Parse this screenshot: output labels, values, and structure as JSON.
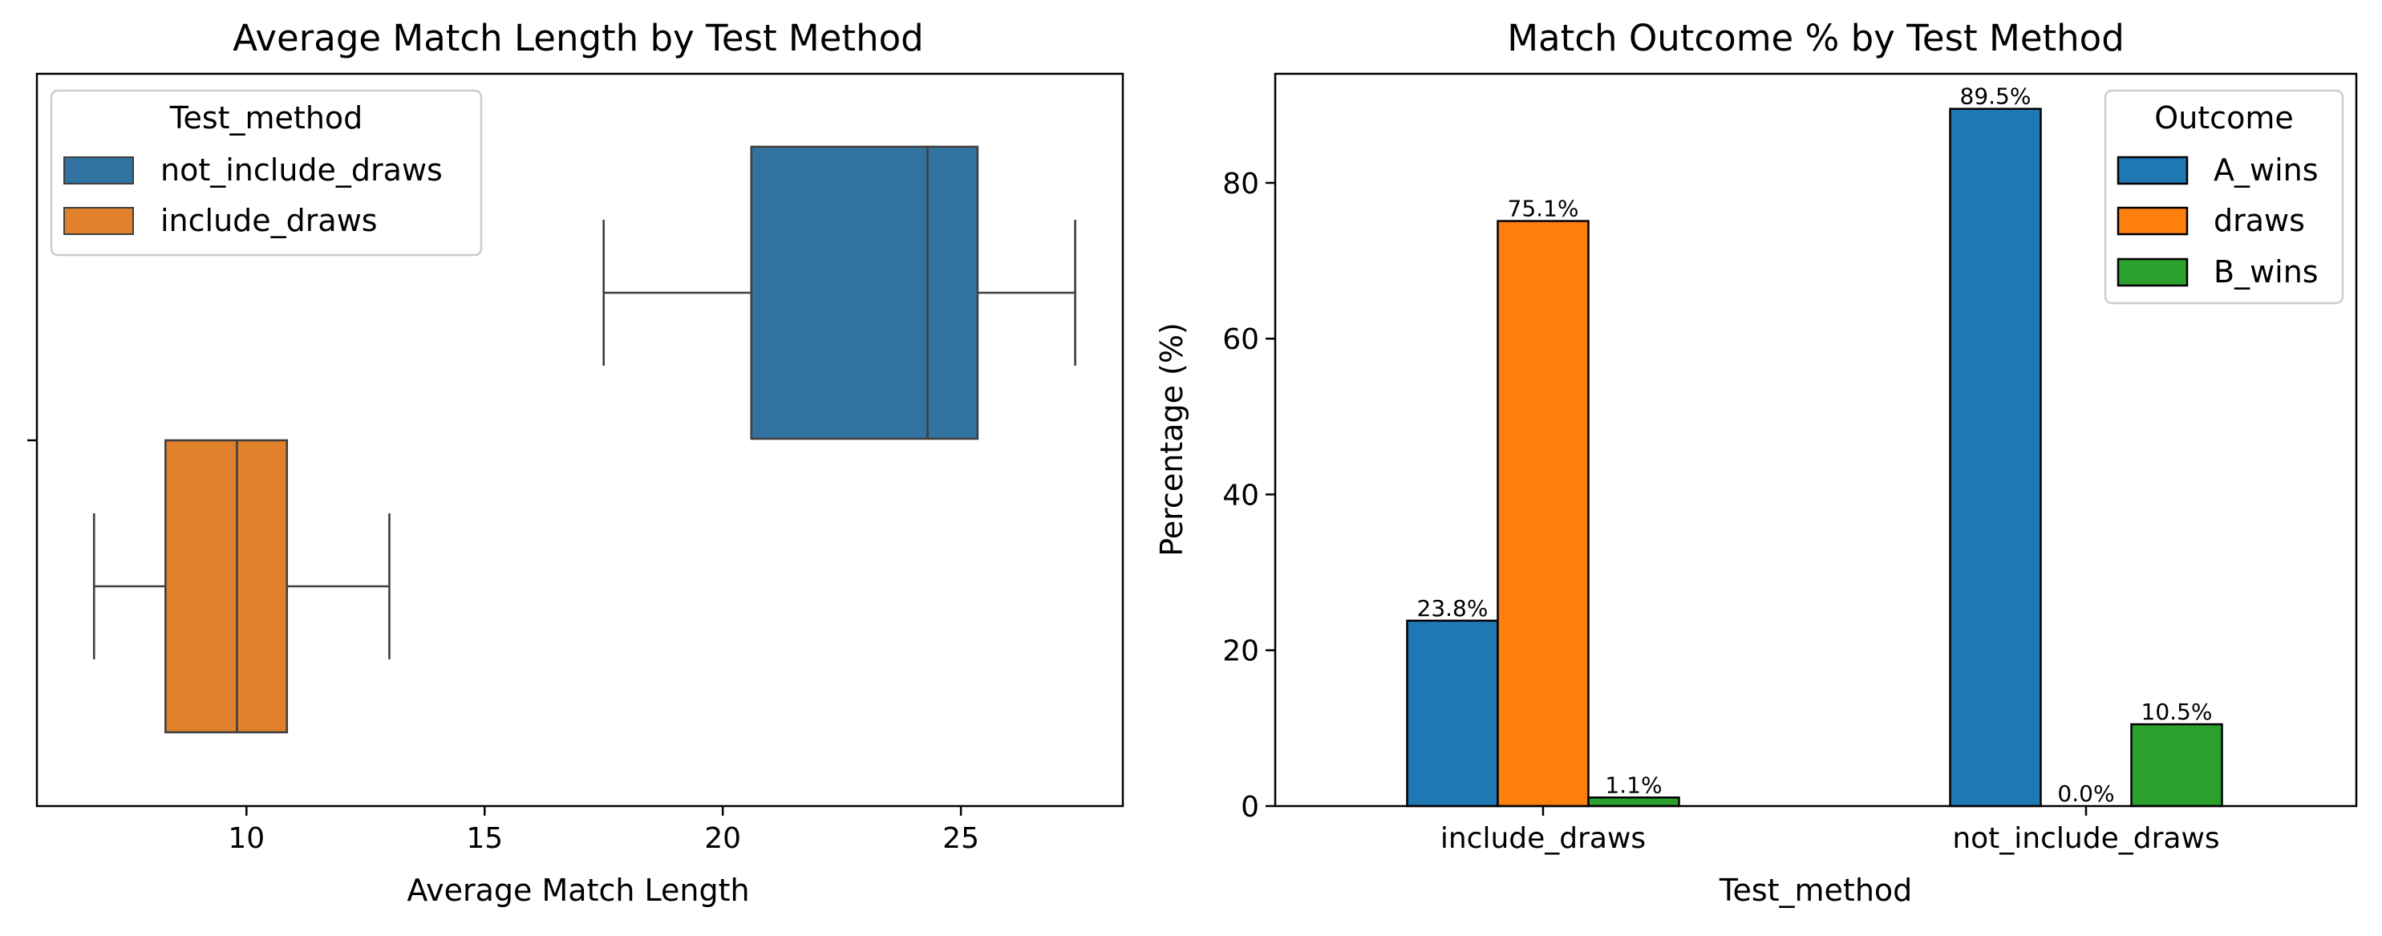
{
  "chart_data": [
    {
      "type": "box",
      "title": "Average Match Length by Test Method",
      "xlabel": "Average Match Length",
      "ylabel": "",
      "xlim": [
        5.6,
        28.4
      ],
      "xticks": [
        10,
        15,
        20,
        25
      ],
      "grid": false,
      "legend": {
        "title": "Test_method",
        "placement": "top-left",
        "entries": [
          {
            "label": "not_include_draws",
            "color": "#3274a1"
          },
          {
            "label": "include_draws",
            "color": "#e1812c"
          }
        ]
      },
      "series": [
        {
          "name": "not_include_draws",
          "color": "#3274a1",
          "whisker_low": 17.5,
          "q1": 20.6,
          "median": 24.3,
          "q3": 25.35,
          "whisker_high": 27.4
        },
        {
          "name": "include_draws",
          "color": "#e1812c",
          "whisker_low": 6.8,
          "q1": 8.3,
          "median": 9.8,
          "q3": 10.85,
          "whisker_high": 13.0
        }
      ]
    },
    {
      "type": "bar",
      "title": "Match Outcome % by Test Method",
      "xlabel": "Test_method",
      "ylabel": "Percentage (%)",
      "ylim": [
        0,
        94
      ],
      "yticks": [
        0,
        20,
        40,
        60,
        80
      ],
      "grid": false,
      "categories": [
        "include_draws",
        "not_include_draws"
      ],
      "legend": {
        "title": "Outcome",
        "placement": "top-right"
      },
      "series": [
        {
          "name": "A_wins",
          "color": "#1f77b4",
          "values": [
            23.8,
            89.5
          ],
          "labels": [
            "23.8%",
            "89.5%"
          ]
        },
        {
          "name": "draws",
          "color": "#ff7f0e",
          "values": [
            75.1,
            0.0
          ],
          "labels": [
            "75.1%",
            "0.0%"
          ]
        },
        {
          "name": "B_wins",
          "color": "#2ca02c",
          "values": [
            1.1,
            10.5
          ],
          "labels": [
            "1.1%",
            "10.5%"
          ]
        }
      ]
    }
  ]
}
